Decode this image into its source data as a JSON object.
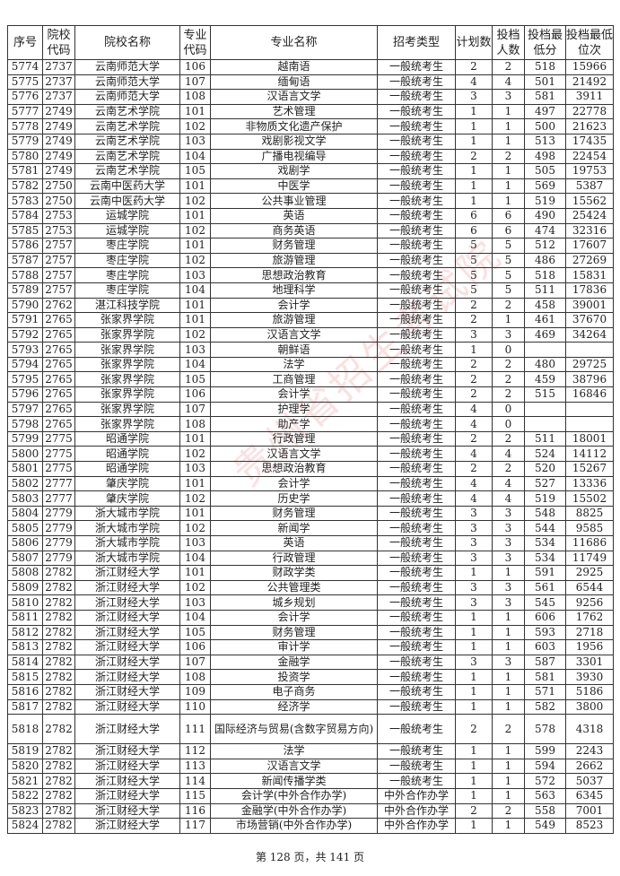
{
  "watermark": "贵州省招生考试院",
  "columns": [
    "序号",
    "院校代码",
    "院校名称",
    "专业代码",
    "专业名称",
    "招考类型",
    "计划数",
    "投档人数",
    "投档最低分",
    "投档最低位次"
  ],
  "rows": [
    [
      "5774",
      "2737",
      "云南师范大学",
      "106",
      "越南语",
      "一般统考生",
      "2",
      "2",
      "518",
      "15966"
    ],
    [
      "5775",
      "2737",
      "云南师范大学",
      "107",
      "缅甸语",
      "一般统考生",
      "4",
      "4",
      "501",
      "21492"
    ],
    [
      "5776",
      "2737",
      "云南师范大学",
      "108",
      "汉语言文学",
      "一般统考生",
      "3",
      "3",
      "581",
      "3911"
    ],
    [
      "5777",
      "2749",
      "云南艺术学院",
      "101",
      "艺术管理",
      "一般统考生",
      "1",
      "1",
      "497",
      "22778"
    ],
    [
      "5778",
      "2749",
      "云南艺术学院",
      "102",
      "非物质文化遗产保护",
      "一般统考生",
      "1",
      "1",
      "500",
      "21623"
    ],
    [
      "5779",
      "2749",
      "云南艺术学院",
      "103",
      "戏剧影视文学",
      "一般统考生",
      "1",
      "1",
      "513",
      "17435"
    ],
    [
      "5780",
      "2749",
      "云南艺术学院",
      "104",
      "广播电视编导",
      "一般统考生",
      "2",
      "2",
      "498",
      "22454"
    ],
    [
      "5781",
      "2749",
      "云南艺术学院",
      "105",
      "戏剧学",
      "一般统考生",
      "1",
      "1",
      "505",
      "19753"
    ],
    [
      "5782",
      "2750",
      "云南中医药大学",
      "101",
      "中医学",
      "一般统考生",
      "1",
      "1",
      "569",
      "5387"
    ],
    [
      "5783",
      "2750",
      "云南中医药大学",
      "102",
      "公共事业管理",
      "一般统考生",
      "1",
      "1",
      "519",
      "15562"
    ],
    [
      "5784",
      "2753",
      "运城学院",
      "101",
      "英语",
      "一般统考生",
      "6",
      "6",
      "490",
      "25424"
    ],
    [
      "5785",
      "2753",
      "运城学院",
      "102",
      "商务英语",
      "一般统考生",
      "6",
      "6",
      "474",
      "32316"
    ],
    [
      "5786",
      "2757",
      "枣庄学院",
      "101",
      "财务管理",
      "一般统考生",
      "5",
      "5",
      "512",
      "17607"
    ],
    [
      "5787",
      "2757",
      "枣庄学院",
      "102",
      "旅游管理",
      "一般统考生",
      "5",
      "5",
      "486",
      "27269"
    ],
    [
      "5788",
      "2757",
      "枣庄学院",
      "103",
      "思想政治教育",
      "一般统考生",
      "5",
      "5",
      "518",
      "15831"
    ],
    [
      "5789",
      "2757",
      "枣庄学院",
      "104",
      "地理科学",
      "一般统考生",
      "5",
      "5",
      "511",
      "17836"
    ],
    [
      "5790",
      "2762",
      "湛江科技学院",
      "101",
      "会计学",
      "一般统考生",
      "2",
      "2",
      "458",
      "39001"
    ],
    [
      "5791",
      "2765",
      "张家界学院",
      "101",
      "旅游管理",
      "一般统考生",
      "2",
      "1",
      "461",
      "37670"
    ],
    [
      "5792",
      "2765",
      "张家界学院",
      "102",
      "汉语言文学",
      "一般统考生",
      "3",
      "3",
      "469",
      "34264"
    ],
    [
      "5793",
      "2765",
      "张家界学院",
      "103",
      "朝鲜语",
      "一般统考生",
      "1",
      "0",
      "",
      ""
    ],
    [
      "5794",
      "2765",
      "张家界学院",
      "104",
      "法学",
      "一般统考生",
      "2",
      "2",
      "480",
      "29725"
    ],
    [
      "5795",
      "2765",
      "张家界学院",
      "105",
      "工商管理",
      "一般统考生",
      "2",
      "2",
      "459",
      "38796"
    ],
    [
      "5796",
      "2765",
      "张家界学院",
      "106",
      "会计学",
      "一般统考生",
      "2",
      "2",
      "515",
      "16846"
    ],
    [
      "5797",
      "2765",
      "张家界学院",
      "107",
      "护理学",
      "一般统考生",
      "4",
      "0",
      "",
      ""
    ],
    [
      "5798",
      "2765",
      "张家界学院",
      "108",
      "助产学",
      "一般统考生",
      "4",
      "0",
      "",
      ""
    ],
    [
      "5799",
      "2775",
      "昭通学院",
      "101",
      "行政管理",
      "一般统考生",
      "2",
      "2",
      "511",
      "18001"
    ],
    [
      "5800",
      "2775",
      "昭通学院",
      "102",
      "汉语言文学",
      "一般统考生",
      "4",
      "4",
      "524",
      "14112"
    ],
    [
      "5801",
      "2775",
      "昭通学院",
      "103",
      "思想政治教育",
      "一般统考生",
      "2",
      "2",
      "520",
      "15267"
    ],
    [
      "5802",
      "2777",
      "肇庆学院",
      "101",
      "会计学",
      "一般统考生",
      "4",
      "4",
      "527",
      "13336"
    ],
    [
      "5803",
      "2777",
      "肇庆学院",
      "102",
      "历史学",
      "一般统考生",
      "4",
      "4",
      "519",
      "15502"
    ],
    [
      "5804",
      "2779",
      "浙大城市学院",
      "101",
      "财务管理",
      "一般统考生",
      "3",
      "3",
      "548",
      "8825"
    ],
    [
      "5805",
      "2779",
      "浙大城市学院",
      "102",
      "新闻学",
      "一般统考生",
      "3",
      "3",
      "544",
      "9585"
    ],
    [
      "5806",
      "2779",
      "浙大城市学院",
      "103",
      "英语",
      "一般统考生",
      "3",
      "3",
      "534",
      "11686"
    ],
    [
      "5807",
      "2779",
      "浙大城市学院",
      "104",
      "行政管理",
      "一般统考生",
      "3",
      "3",
      "534",
      "11749"
    ],
    [
      "5808",
      "2782",
      "浙江财经大学",
      "101",
      "财政学类",
      "一般统考生",
      "1",
      "1",
      "591",
      "2925"
    ],
    [
      "5809",
      "2782",
      "浙江财经大学",
      "102",
      "公共管理类",
      "一般统考生",
      "3",
      "3",
      "561",
      "6544"
    ],
    [
      "5810",
      "2782",
      "浙江财经大学",
      "103",
      "城乡规划",
      "一般统考生",
      "3",
      "3",
      "545",
      "9256"
    ],
    [
      "5811",
      "2782",
      "浙江财经大学",
      "104",
      "会计学",
      "一般统考生",
      "1",
      "1",
      "606",
      "1762"
    ],
    [
      "5812",
      "2782",
      "浙江财经大学",
      "105",
      "财务管理",
      "一般统考生",
      "1",
      "1",
      "593",
      "2718"
    ],
    [
      "5813",
      "2782",
      "浙江财经大学",
      "106",
      "审计学",
      "一般统考生",
      "1",
      "1",
      "603",
      "1956"
    ],
    [
      "5814",
      "2782",
      "浙江财经大学",
      "107",
      "金融学",
      "一般统考生",
      "3",
      "3",
      "587",
      "3301"
    ],
    [
      "5815",
      "2782",
      "浙江财经大学",
      "108",
      "投资学",
      "一般统考生",
      "1",
      "1",
      "581",
      "3930"
    ],
    [
      "5816",
      "2782",
      "浙江财经大学",
      "109",
      "电子商务",
      "一般统考生",
      "1",
      "1",
      "571",
      "5186"
    ],
    [
      "5817",
      "2782",
      "浙江财经大学",
      "110",
      "经济学",
      "一般统考生",
      "1",
      "1",
      "582",
      "3800"
    ],
    [
      "5818",
      "2782",
      "浙江财经大学",
      "111",
      "国际经济与贸易(含数字贸易方向)",
      "一般统考生",
      "2",
      "2",
      "578",
      "4318"
    ],
    [
      "5819",
      "2782",
      "浙江财经大学",
      "112",
      "法学",
      "一般统考生",
      "1",
      "1",
      "599",
      "2243"
    ],
    [
      "5820",
      "2782",
      "浙江财经大学",
      "113",
      "汉语言文学",
      "一般统考生",
      "1",
      "1",
      "594",
      "2662"
    ],
    [
      "5821",
      "2782",
      "浙江财经大学",
      "114",
      "新闻传播学类",
      "一般统考生",
      "1",
      "1",
      "572",
      "5037"
    ],
    [
      "5822",
      "2782",
      "浙江财经大学",
      "115",
      "会计学(中外合作办学)",
      "中外合作办学",
      "1",
      "1",
      "563",
      "6345"
    ],
    [
      "5823",
      "2782",
      "浙江财经大学",
      "116",
      "金融学(中外合作办学)",
      "中外合作办学",
      "2",
      "2",
      "558",
      "7001"
    ],
    [
      "5824",
      "2782",
      "浙江财经大学",
      "117",
      "市场营销(中外合作办学)",
      "中外合作办学",
      "1",
      "1",
      "549",
      "8523"
    ]
  ],
  "footer": "第 128 页，共 141 页"
}
